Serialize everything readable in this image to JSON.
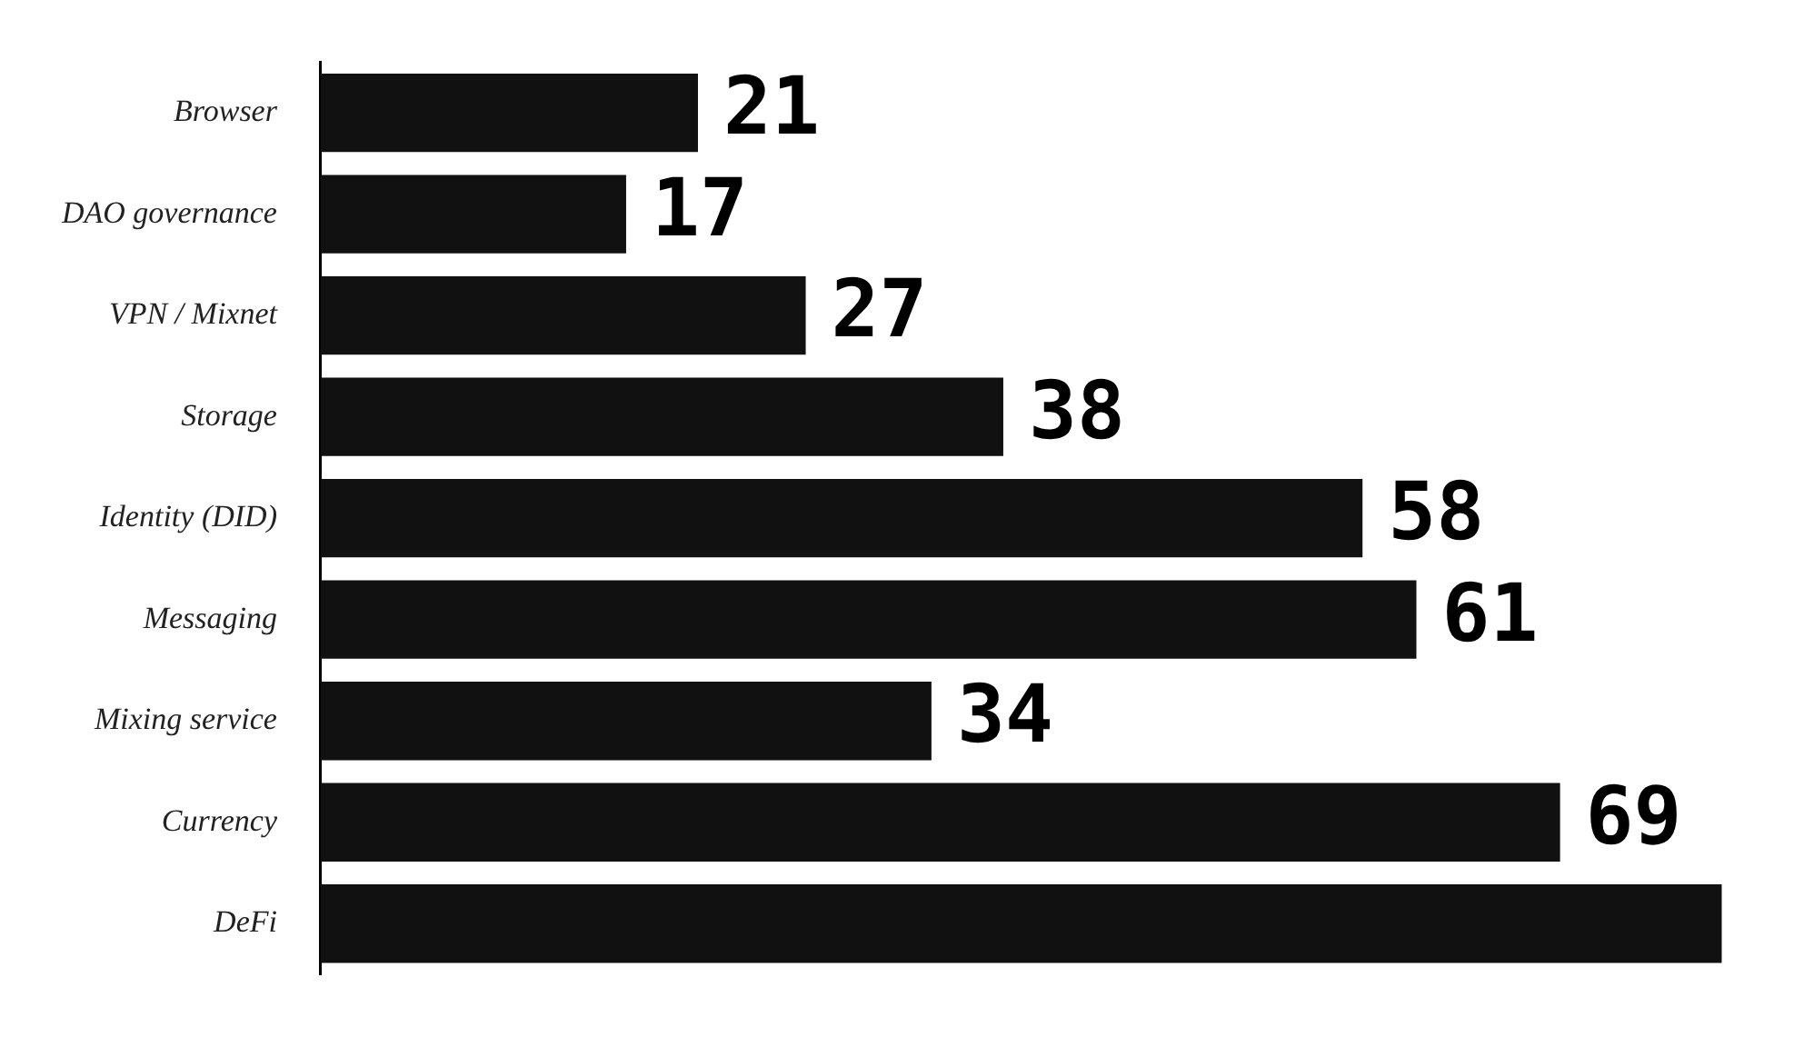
{
  "chart_data": {
    "type": "bar",
    "orientation": "horizontal",
    "categories": [
      "Browser",
      "DAO governance",
      "VPN / Mixnet",
      "Storage",
      "Identity (DID)",
      "Messaging",
      "Mixing service",
      "Currency",
      "DeFi"
    ],
    "values": [
      21,
      17,
      27,
      38,
      58,
      61,
      34,
      69,
      78
    ],
    "value_labels": [
      "21",
      "17",
      "27",
      "38",
      "58",
      "61",
      "34",
      "69",
      null
    ],
    "color": "#111111",
    "legend": false,
    "tick_labels": "y"
  }
}
